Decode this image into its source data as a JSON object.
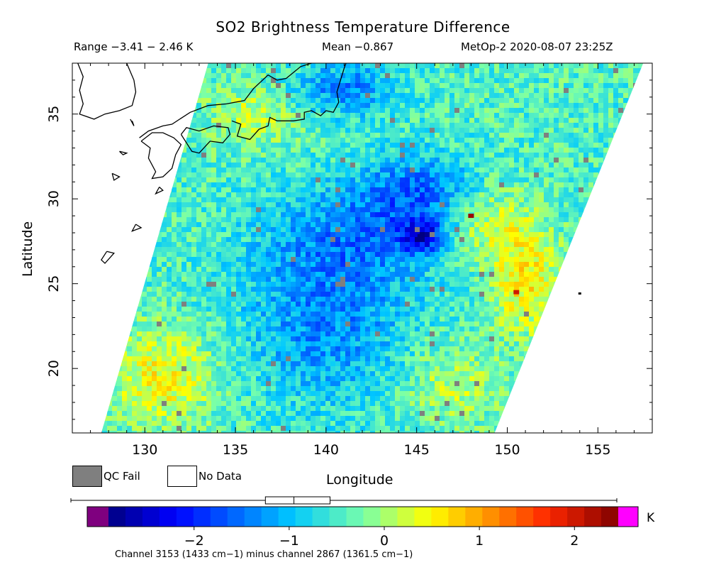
{
  "chart_data": {
    "type": "heatmap",
    "title": "SO2 Brightness Temperature Difference",
    "range_text": "Range −3.41 − 2.46 K",
    "mean_text": "Mean −0.867",
    "satellite_text": "MetOp-2 2020-08-07 23:25Z",
    "xlabel": "Longitude",
    "ylabel": "Latitude",
    "xlim": [
      126,
      158
    ],
    "ylim": [
      16.2,
      38
    ],
    "x_ticks": [
      130,
      135,
      140,
      145,
      150,
      155
    ],
    "y_ticks": [
      20,
      25,
      30,
      35
    ],
    "colorbar": {
      "vmin": -2.9,
      "vmax": 2.46,
      "ticks": [
        -2,
        -1,
        0,
        1,
        2
      ],
      "tick_labels": [
        "−2",
        "−1",
        "0",
        "1",
        "2"
      ],
      "unit": "K",
      "box_stats": {
        "min": -3.41,
        "q1": -1.25,
        "median": -0.95,
        "q3": -0.57,
        "max": 2.46
      }
    },
    "legend": [
      {
        "label": "QC Fail",
        "color": "#7f7f7f"
      },
      {
        "label": "No Data",
        "color": "#ffffff"
      }
    ],
    "footnote": "Channel 3153 (1433 cm−1) minus channel 2867 (1361.5 cm−1)",
    "swath_corners": [
      [
        133.5,
        38
      ],
      [
        157.5,
        38
      ],
      [
        149.3,
        16.2
      ],
      [
        127.6,
        16.2
      ]
    ],
    "features": [
      {
        "name": "minimum-region-pacific",
        "lon": 145.2,
        "lat": 27.8,
        "value": -3.3
      },
      {
        "name": "high-values-east-edge",
        "lon": 150.5,
        "lat": 24.5,
        "value": 2.0
      },
      {
        "name": "high-values-se",
        "lon": 148.0,
        "lat": 29.0,
        "value": 2.3
      }
    ]
  },
  "colors": {
    "below_range": "#7f007f",
    "above_range": "#ff00ff",
    "qc_fail": "#7f7f7f"
  }
}
